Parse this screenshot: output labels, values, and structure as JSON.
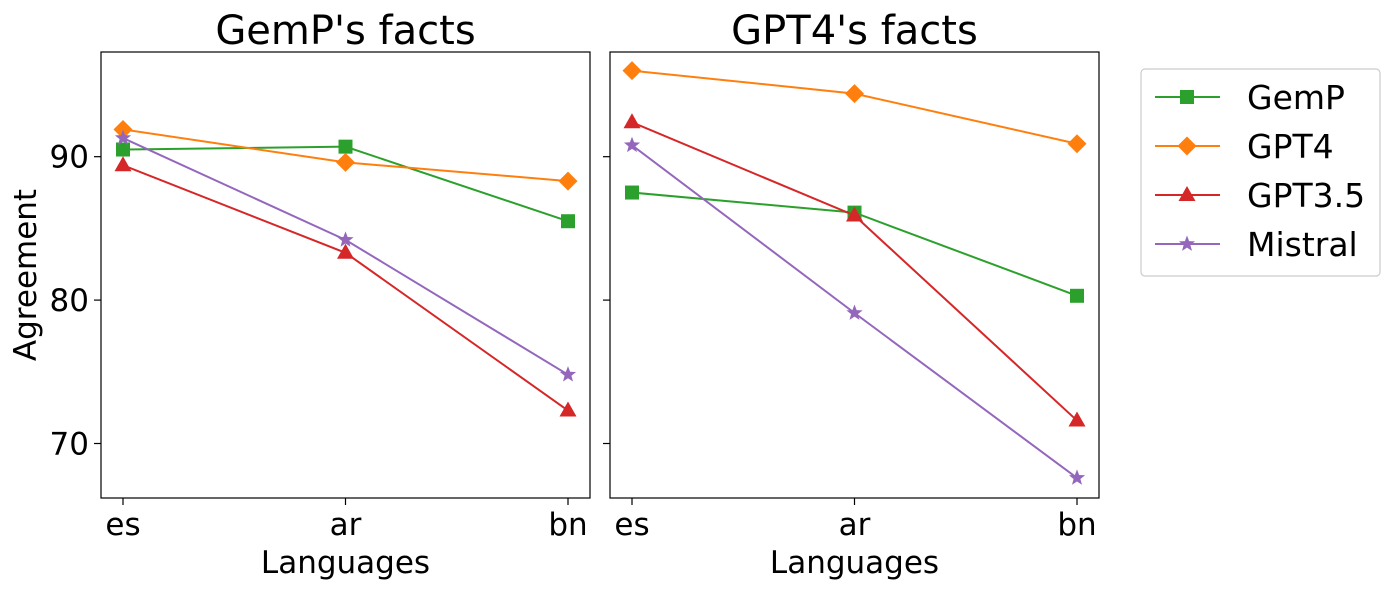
{
  "chart_data": [
    {
      "type": "line",
      "title": "GemP's facts",
      "xlabel": "Languages",
      "ylabel": "Agreement",
      "categories": [
        "es",
        "ar",
        "bn"
      ],
      "ylim": [
        66.2,
        97.3
      ],
      "yticks": [
        70,
        80,
        90
      ],
      "ytick_labels": [
        "70",
        "80",
        "90"
      ],
      "series": [
        {
          "name": "GemP",
          "values": [
            90.5,
            90.7,
            85.5
          ]
        },
        {
          "name": "GPT4",
          "values": [
            91.9,
            89.6,
            88.3
          ]
        },
        {
          "name": "GPT3.5",
          "values": [
            89.4,
            83.3,
            72.3
          ]
        },
        {
          "name": "Mistral",
          "values": [
            91.3,
            84.2,
            74.8
          ]
        }
      ]
    },
    {
      "type": "line",
      "title": "GPT4's facts",
      "xlabel": "Languages",
      "ylabel": "",
      "categories": [
        "es",
        "ar",
        "bn"
      ],
      "ylim": [
        66.2,
        97.3
      ],
      "yticks": [
        70,
        80,
        90
      ],
      "ytick_labels": [
        "",
        "",
        ""
      ],
      "series": [
        {
          "name": "GemP",
          "values": [
            87.5,
            86.1,
            80.3
          ]
        },
        {
          "name": "GPT4",
          "values": [
            96.0,
            94.4,
            90.9
          ]
        },
        {
          "name": "GPT3.5",
          "values": [
            92.4,
            85.9,
            71.6
          ]
        },
        {
          "name": "Mistral",
          "values": [
            90.8,
            79.1,
            67.6
          ]
        }
      ]
    }
  ],
  "legend": {
    "placement": "right",
    "items": [
      {
        "name": "GemP",
        "color": "#2ca02c",
        "marker": "square"
      },
      {
        "name": "GPT4",
        "color": "#ff7f0e",
        "marker": "diamond"
      },
      {
        "name": "GPT3.5",
        "color": "#d62728",
        "marker": "triangle"
      },
      {
        "name": "Mistral",
        "color": "#9467bd",
        "marker": "star"
      }
    ]
  }
}
